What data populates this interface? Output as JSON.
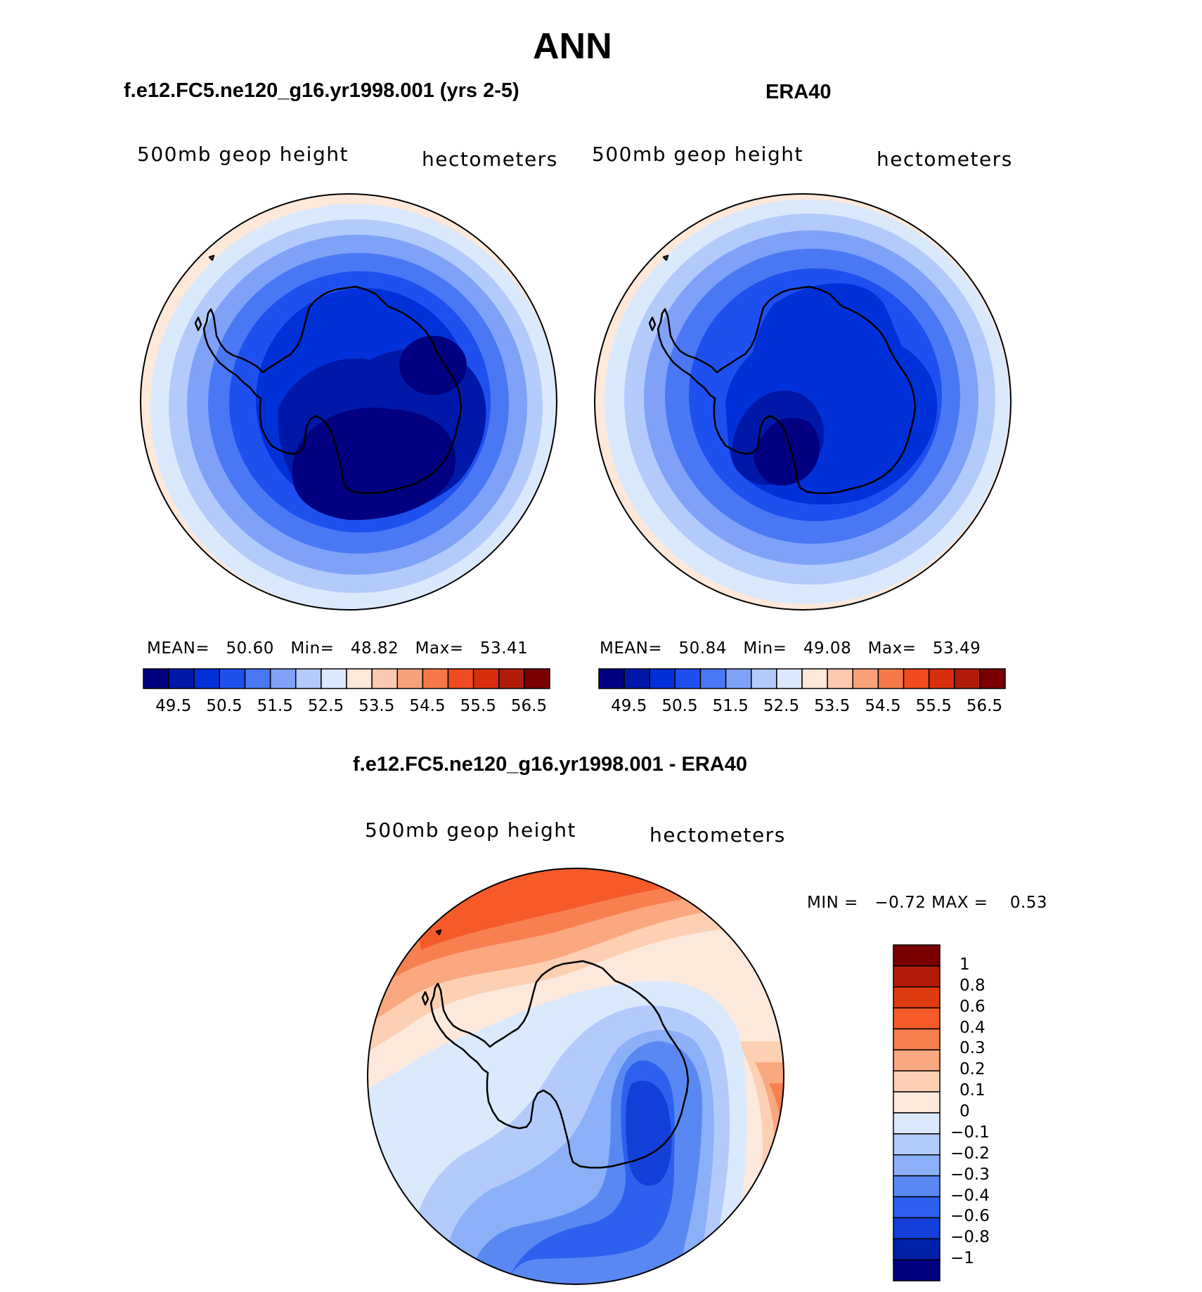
{
  "figure": {
    "title": "ANN",
    "season": "ANN"
  },
  "panels": [
    {
      "id": "model",
      "heading": "f.e12.FC5.ne120_g16.yr1998.001 (yrs 2-5)",
      "variable_label": "500mb geop height",
      "units_label": "hectometers",
      "stats": {
        "mean_label": "MEAN=",
        "mean": "50.60",
        "min_label": "Min=",
        "min": "48.82",
        "max_label": "Max=",
        "max": "53.41"
      },
      "colorbar_ticks": [
        "49.5",
        "50.5",
        "51.5",
        "52.5",
        "53.5",
        "54.5",
        "55.5",
        "56.5"
      ],
      "colorbar_colors": [
        "#000080",
        "#0018a8",
        "#0030d8",
        "#1e50f0",
        "#4a78f5",
        "#7fa2f8",
        "#b3cbfb",
        "#dbe9fd",
        "#fde8d9",
        "#fcc8b0",
        "#f8a07a",
        "#f67848",
        "#f04a20",
        "#d82e0c",
        "#b01c08",
        "#7a0000"
      ]
    },
    {
      "id": "obs",
      "heading": "ERA40",
      "variable_label": "500mb geop height",
      "units_label": "hectometers",
      "stats": {
        "mean_label": "MEAN=",
        "mean": "50.84",
        "min_label": "Min=",
        "min": "49.08",
        "max_label": "Max=",
        "max": "53.49"
      },
      "colorbar_ticks": [
        "49.5",
        "50.5",
        "51.5",
        "52.5",
        "53.5",
        "54.5",
        "55.5",
        "56.5"
      ],
      "colorbar_colors": [
        "#000080",
        "#0018a8",
        "#0030d8",
        "#1e50f0",
        "#4a78f5",
        "#7fa2f8",
        "#b3cbfb",
        "#dbe9fd",
        "#fde8d9",
        "#fcc8b0",
        "#f8a07a",
        "#f67848",
        "#f04a20",
        "#d82e0c",
        "#b01c08",
        "#7a0000"
      ]
    },
    {
      "id": "diff",
      "heading": "f.e12.FC5.ne120_g16.yr1998.001 - ERA40",
      "variable_label": "500mb geop height",
      "units_label": "hectometers",
      "stats": {
        "min_label": "MIN =",
        "min": "−0.72",
        "max_label": "MAX =",
        "max": "0.53"
      },
      "colorbar_ticks": [
        "1",
        "0.8",
        "0.6",
        "0.4",
        "0.3",
        "0.2",
        "0.1",
        "0",
        "−0.1",
        "−0.2",
        "−0.3",
        "−0.4",
        "−0.6",
        "−0.8",
        "−1"
      ],
      "colorbar_colors": [
        "#7a0000",
        "#b01c08",
        "#e03a10",
        "#f65a28",
        "#f88050",
        "#faa880",
        "#fdd0b4",
        "#fde9dc",
        "#dbe9fd",
        "#b3cbfb",
        "#8cb0f8",
        "#5a88f3",
        "#2e60ef",
        "#1240d8",
        "#0020a8",
        "#000080"
      ]
    }
  ]
}
